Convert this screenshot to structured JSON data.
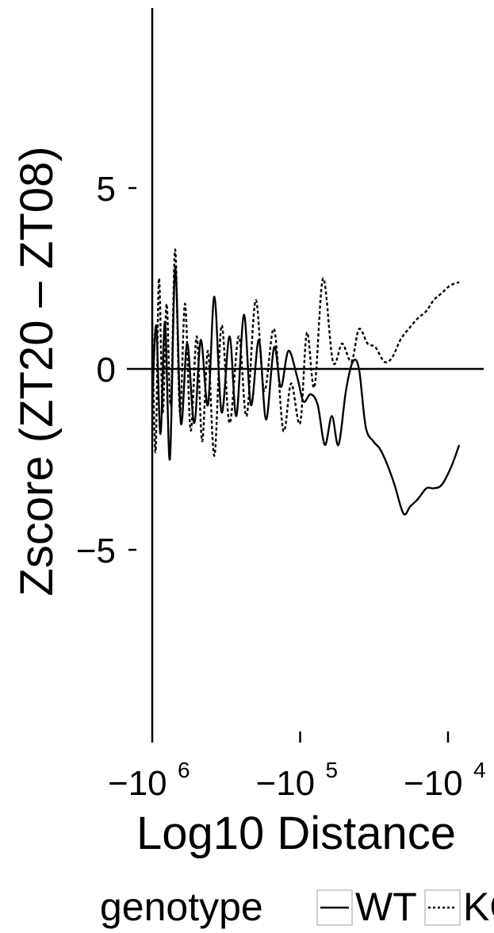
{
  "chart_data": {
    "type": "line",
    "title": "",
    "xlabel": "Log10 Distance",
    "ylabel": "Zscore (ZT20 – ZT08)",
    "x_scale": "negative-log10",
    "xlim": [
      -1000000,
      -8000
    ],
    "ylim": [
      -10,
      10
    ],
    "reference_line_y": 0,
    "grid": false,
    "legend": {
      "title": "genotype",
      "position": "bottom",
      "entries": [
        {
          "label": "WT",
          "style": "solid"
        },
        {
          "label": "KO",
          "style": "dotted"
        }
      ]
    },
    "x_ticks": [
      {
        "value": -1000000,
        "base": "−10",
        "exp": "6"
      },
      {
        "value": -100000,
        "base": "−10",
        "exp": "5"
      },
      {
        "value": -10000,
        "base": "−10",
        "exp": "4"
      }
    ],
    "y_ticks": [
      {
        "value": 5,
        "label": "5"
      },
      {
        "value": 0,
        "label": "0"
      },
      {
        "value": -5,
        "label": "−5"
      }
    ],
    "series": [
      {
        "name": "WT",
        "style": "solid",
        "color": "#000000",
        "x": [
          -1000000,
          -940000,
          -880000,
          -820000,
          -760000,
          -700000,
          -640000,
          -580000,
          -520000,
          -470000,
          -420000,
          -380000,
          -340000,
          -300000,
          -270000,
          -240000,
          -215000,
          -190000,
          -170000,
          -150000,
          -135000,
          -120000,
          -105000,
          -95000,
          -85000,
          -76000,
          -68000,
          -61000,
          -55000,
          -49000,
          -44000,
          -40000,
          -36000,
          -32000,
          -29000,
          -26000,
          -23000,
          -20000,
          -18000,
          -16000,
          -14000,
          -12500,
          -11000,
          -9500,
          -8400
        ],
        "y": [
          -1.0,
          1.2,
          -1.8,
          1.3,
          -2.5,
          2.8,
          -1.5,
          0.7,
          -1.5,
          0.8,
          -1.0,
          2.0,
          -1.2,
          0.9,
          -1.3,
          1.5,
          -1.0,
          0.8,
          -1.4,
          0.6,
          -0.5,
          0.5,
          -0.2,
          -0.9,
          -0.7,
          -1.0,
          -2.1,
          -1.3,
          -2.1,
          -0.6,
          0.2,
          0.0,
          -1.6,
          -2.0,
          -2.2,
          -2.6,
          -3.2,
          -4.0,
          -3.8,
          -3.6,
          -3.3,
          -3.3,
          -3.2,
          -2.7,
          -2.1
        ]
      },
      {
        "name": "KO",
        "style": "dotted",
        "color": "#000000",
        "x": [
          -1000000,
          -950000,
          -900000,
          -850000,
          -800000,
          -750000,
          -700000,
          -650000,
          -600000,
          -550000,
          -500000,
          -460000,
          -420000,
          -380000,
          -340000,
          -300000,
          -260000,
          -230000,
          -200000,
          -175000,
          -150000,
          -130000,
          -115000,
          -100000,
          -90000,
          -80000,
          -70000,
          -60000,
          -52000,
          -45000,
          -40000,
          -35000,
          -31000,
          -27000,
          -24000,
          -21000,
          -18500,
          -16000,
          -14000,
          -12500,
          -11000,
          -9700,
          -8400
        ],
        "y": [
          1.3,
          -2.3,
          2.5,
          -1.2,
          1.8,
          -1.0,
          3.3,
          -1.2,
          1.8,
          -1.7,
          0.9,
          -2.0,
          0.5,
          -2.4,
          1.2,
          -1.5,
          0.9,
          -1.3,
          1.9,
          -0.6,
          1.1,
          -1.7,
          -0.4,
          -1.5,
          1.0,
          -0.5,
          2.5,
          0.2,
          0.7,
          0.2,
          1.1,
          0.7,
          0.6,
          0.2,
          0.3,
          0.8,
          1.1,
          1.4,
          1.6,
          1.9,
          2.1,
          2.3,
          2.4
        ]
      }
    ]
  }
}
